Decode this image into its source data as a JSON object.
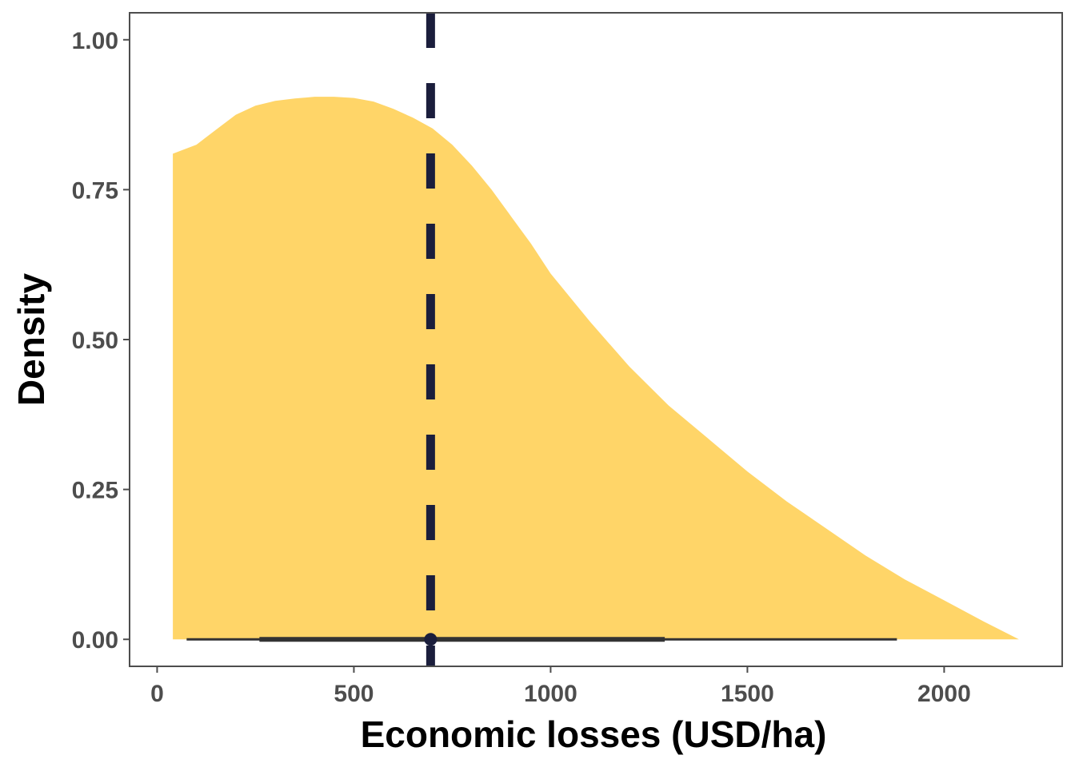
{
  "chart_data": {
    "type": "area",
    "title": "",
    "xlabel": "Economic losses (USD/ha)",
    "ylabel": "Density",
    "xlim": [
      -70,
      2300
    ],
    "ylim": [
      -0.045,
      1.045
    ],
    "x_ticks": [
      0,
      500,
      1000,
      1500,
      2000
    ],
    "x_tick_labels": [
      "0",
      "500",
      "1000",
      "1500",
      "2000"
    ],
    "y_ticks": [
      0,
      0.25,
      0.5,
      0.75,
      1.0
    ],
    "y_tick_labels": [
      "0.00",
      "0.25",
      "0.50",
      "0.75",
      "1.00"
    ],
    "grid": false,
    "colors": {
      "fill": "#FFD568",
      "reference_line": "#1B1E3C",
      "interval": "#333333",
      "frame": "#4d4d4d"
    },
    "series": [
      {
        "x": [
          40,
          100,
          150,
          200,
          250,
          300,
          350,
          400,
          450,
          500,
          550,
          600,
          650,
          700,
          750,
          800,
          850,
          900,
          950,
          1000,
          1100,
          1200,
          1300,
          1400,
          1500,
          1600,
          1700,
          1800,
          1900,
          2000,
          2100,
          2190
        ],
        "values": [
          0.81,
          0.825,
          0.85,
          0.875,
          0.89,
          0.898,
          0.902,
          0.905,
          0.905,
          0.903,
          0.897,
          0.885,
          0.87,
          0.852,
          0.825,
          0.79,
          0.75,
          0.705,
          0.66,
          0.61,
          0.53,
          0.455,
          0.39,
          0.335,
          0.28,
          0.23,
          0.185,
          0.14,
          0.1,
          0.065,
          0.03,
          0.0
        ]
      }
    ],
    "reference_line": {
      "x": 695,
      "style": "dashed"
    },
    "interval": {
      "point": 695,
      "inner": [
        260,
        1290
      ],
      "outer": [
        75,
        1880
      ]
    }
  }
}
